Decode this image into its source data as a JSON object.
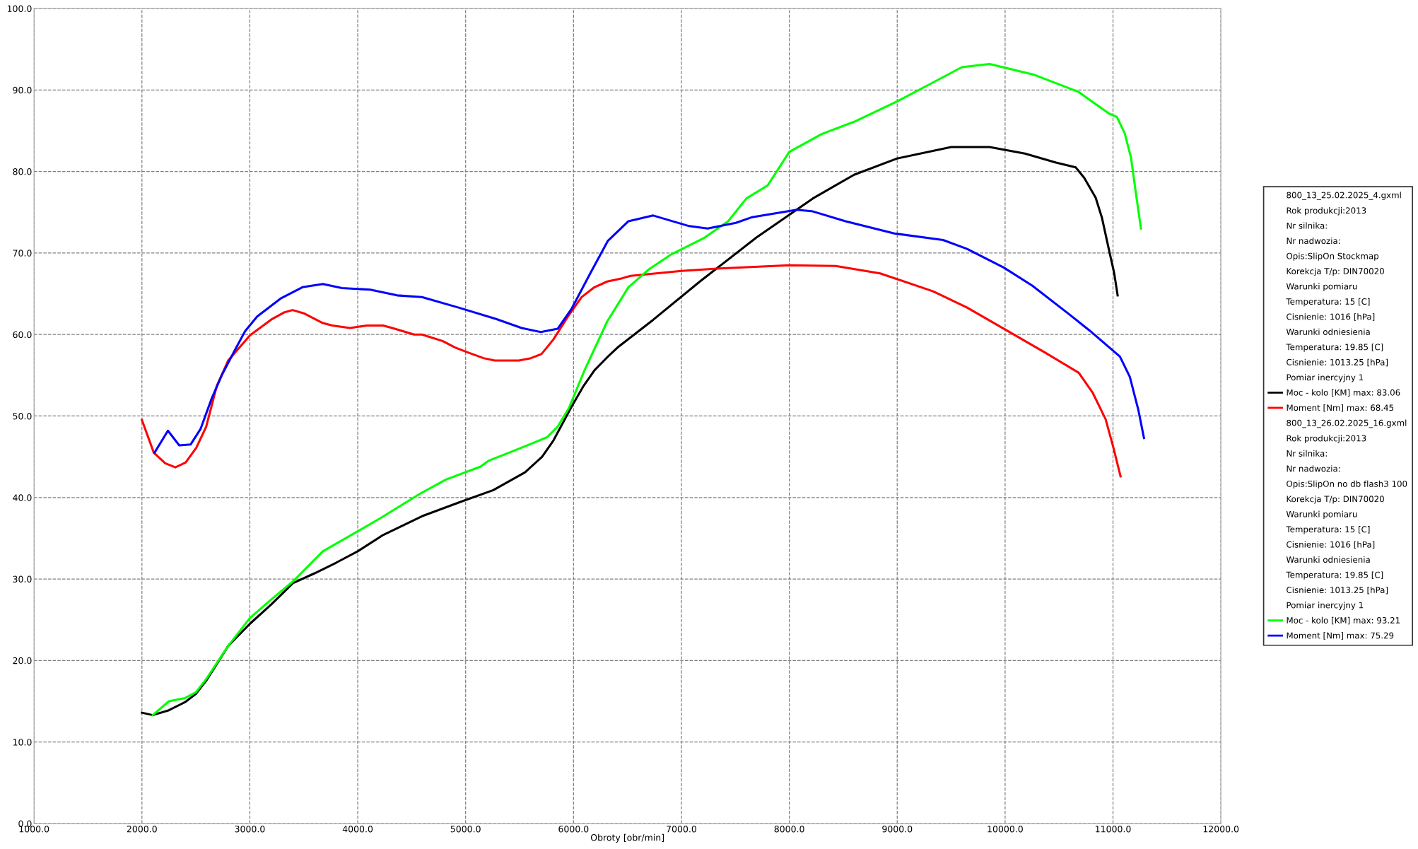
{
  "chart_data": {
    "type": "line",
    "xlabel": "Obroty [obr/min]",
    "xlim": [
      1000,
      12000
    ],
    "xticks": [
      {
        "value": 1000,
        "label": "1000.0"
      },
      {
        "value": 2000,
        "label": "2000.0"
      },
      {
        "value": 3000,
        "label": "3000.0"
      },
      {
        "value": 4000,
        "label": "4000.0"
      },
      {
        "value": 5000,
        "label": "5000.0"
      },
      {
        "value": 6000,
        "label": "6000.0"
      },
      {
        "value": 7000,
        "label": "7000.0"
      },
      {
        "value": 8000,
        "label": "8000.0"
      },
      {
        "value": 9000,
        "label": "9000.0"
      },
      {
        "value": 10000,
        "label": "10000.0"
      },
      {
        "value": 11000,
        "label": "11000.0"
      },
      {
        "value": 12000,
        "label": "12000.0"
      }
    ],
    "ylim": [
      0,
      100
    ],
    "yticks": [
      {
        "value": 0,
        "label": "0.0"
      },
      {
        "value": 10,
        "label": "10.0"
      },
      {
        "value": 20,
        "label": "20.0"
      },
      {
        "value": 30,
        "label": "30.0"
      },
      {
        "value": 40,
        "label": "40.0"
      },
      {
        "value": 50,
        "label": "50.0"
      },
      {
        "value": 60,
        "label": "60.0"
      },
      {
        "value": 70,
        "label": "70.0"
      },
      {
        "value": 80,
        "label": "80.0"
      },
      {
        "value": 90,
        "label": "90.0"
      },
      {
        "value": 100,
        "label": "100.0"
      }
    ],
    "grid": true,
    "legend": "right",
    "line_style": "solid",
    "marker": "none",
    "annotations": [
      "800_13_25.02.2025_4.gxml",
      "Rok produkcji:2013",
      "Nr silnika:",
      "Nr nadwozia:",
      "Opis:SlipOn Stockmap",
      "Korekcja T/p: DIN70020",
      "Warunki pomiaru",
      "Temperatura: 15 [C]",
      "Cisnienie: 1016 [hPa]",
      "Warunki odniesienia",
      "Temperatura: 19.85 [C]",
      "Cisnienie: 1013.25 [hPa]",
      "Pomiar inercyjny 1",
      "800_13_26.02.2025_16.gxml",
      "Rok produkcji:2013",
      "Nr silnika:",
      "Nr nadwozia:",
      "Opis:SlipOn no db flash3 100",
      "Korekcja T/p: DIN70020",
      "Warunki pomiaru",
      "Temperatura: 15 [C]",
      "Cisnienie: 1016 [hPa]",
      "Warunki odniesienia",
      "Temperatura: 19.85 [C]",
      "Cisnienie: 1013.25 [hPa]",
      "Pomiar inercyjny 1"
    ],
    "series": [
      {
        "name": "Moc - kolo [KM] max: 83.06",
        "color": "#000000",
        "x": [
          2000,
          2100,
          2250,
          2400,
          2500,
          2600,
          2700,
          2800,
          3000,
          3200,
          3400,
          3600,
          3800,
          4000,
          4235,
          4595,
          4961,
          5256,
          5551,
          5709,
          5814,
          5984,
          6089,
          6194,
          6312,
          6417,
          6738,
          7171,
          7695,
          8219,
          8600,
          9000,
          9500,
          9856,
          10184,
          10472,
          10655,
          10734,
          10839,
          10898,
          10964,
          11010,
          11043
        ],
        "values": [
          13.6,
          13.3,
          13.9,
          14.9,
          15.9,
          17.6,
          19.7,
          21.8,
          24.5,
          26.9,
          29.5,
          30.7,
          32.0,
          33.4,
          35.4,
          37.7,
          39.5,
          40.9,
          43.1,
          45.0,
          47.0,
          51.2,
          53.6,
          55.6,
          57.2,
          58.5,
          61.8,
          66.5,
          71.9,
          76.7,
          79.6,
          81.6,
          83.0,
          83.0,
          82.2,
          81.1,
          80.5,
          79.2,
          76.8,
          74.3,
          70.3,
          67.6,
          64.8
        ]
      },
      {
        "name": "Moment [Nm] max: 68.45",
        "color": "#ff0000",
        "x": [
          2000,
          2110,
          2216,
          2310,
          2406,
          2504,
          2596,
          2694,
          2799,
          3002,
          3206,
          3316,
          3397,
          3500,
          3677,
          3766,
          3928,
          4085,
          4235,
          4320,
          4523,
          4595,
          4786,
          4903,
          5022,
          5166,
          5270,
          5493,
          5605,
          5703,
          5814,
          5958,
          6076,
          6194,
          6312,
          6450,
          6529,
          7000,
          7355,
          7997,
          8430,
          8842,
          9333,
          9648,
          9989,
          10369,
          10683,
          10814,
          10932,
          11004,
          11070
        ],
        "values": [
          49.5,
          45.5,
          44.2,
          43.7,
          44.3,
          46.1,
          48.7,
          53.7,
          56.8,
          59.9,
          61.9,
          62.7,
          63.0,
          62.6,
          61.4,
          61.1,
          60.8,
          61.1,
          61.1,
          60.8,
          60.0,
          60.0,
          59.2,
          58.4,
          57.8,
          57.1,
          56.8,
          56.8,
          57.1,
          57.6,
          59.4,
          62.4,
          64.6,
          65.8,
          66.5,
          66.9,
          67.2,
          67.8,
          68.1,
          68.5,
          68.4,
          67.5,
          65.3,
          63.3,
          60.7,
          57.8,
          55.3,
          52.8,
          49.6,
          46.1,
          42.6
        ]
      },
      {
        "name": "Moc - kolo [KM] max: 93.21",
        "color": "#00ff00",
        "x": [
          2100,
          2250,
          2400,
          2500,
          2600,
          2700,
          2800,
          3000,
          3200,
          3400,
          3677,
          3940,
          4202,
          4582,
          4818,
          5139,
          5211,
          5460,
          5755,
          5853,
          5958,
          6102,
          6312,
          6509,
          6699,
          6902,
          7204,
          7433,
          7603,
          7800,
          8000,
          8300,
          8600,
          9000,
          9300,
          9600,
          9856,
          10262,
          10675,
          10964,
          11036,
          11108,
          11167,
          11206,
          11259
        ],
        "values": [
          13.3,
          15.0,
          15.4,
          16.1,
          17.8,
          19.8,
          21.8,
          25.2,
          27.5,
          29.7,
          33.4,
          35.4,
          37.4,
          40.5,
          42.2,
          43.8,
          44.5,
          45.8,
          47.4,
          48.7,
          51.0,
          55.6,
          61.6,
          65.8,
          68.0,
          69.8,
          71.8,
          73.9,
          76.7,
          78.3,
          82.4,
          84.6,
          86.1,
          88.6,
          90.7,
          92.8,
          93.2,
          91.9,
          89.8,
          87.1,
          86.7,
          84.7,
          81.7,
          77.9,
          73.0
        ]
      },
      {
        "name": "Moment [Nm] max: 75.29",
        "color": "#0000ff",
        "x": [
          2117,
          2241,
          2346,
          2451,
          2543,
          2648,
          2740,
          2858,
          2956,
          3068,
          3284,
          3487,
          3677,
          3854,
          4116,
          4365,
          4595,
          4935,
          5283,
          5519,
          5696,
          5853,
          5984,
          6155,
          6319,
          6509,
          6738,
          7072,
          7243,
          7505,
          7656,
          8069,
          8219,
          8521,
          8973,
          9425,
          9648,
          9989,
          10251,
          10592,
          10782,
          11064,
          11156,
          11234,
          11287
        ],
        "values": [
          45.5,
          48.2,
          46.4,
          46.5,
          48.4,
          52.2,
          55.0,
          58.0,
          60.4,
          62.2,
          64.4,
          65.8,
          66.2,
          65.7,
          65.5,
          64.8,
          64.6,
          63.3,
          61.9,
          60.8,
          60.3,
          60.7,
          63.2,
          67.5,
          71.5,
          73.9,
          74.6,
          73.3,
          73.0,
          73.7,
          74.4,
          75.3,
          75.1,
          73.9,
          72.4,
          71.6,
          70.5,
          68.2,
          66.0,
          62.5,
          60.5,
          57.3,
          54.8,
          50.8,
          47.3
        ]
      }
    ]
  }
}
